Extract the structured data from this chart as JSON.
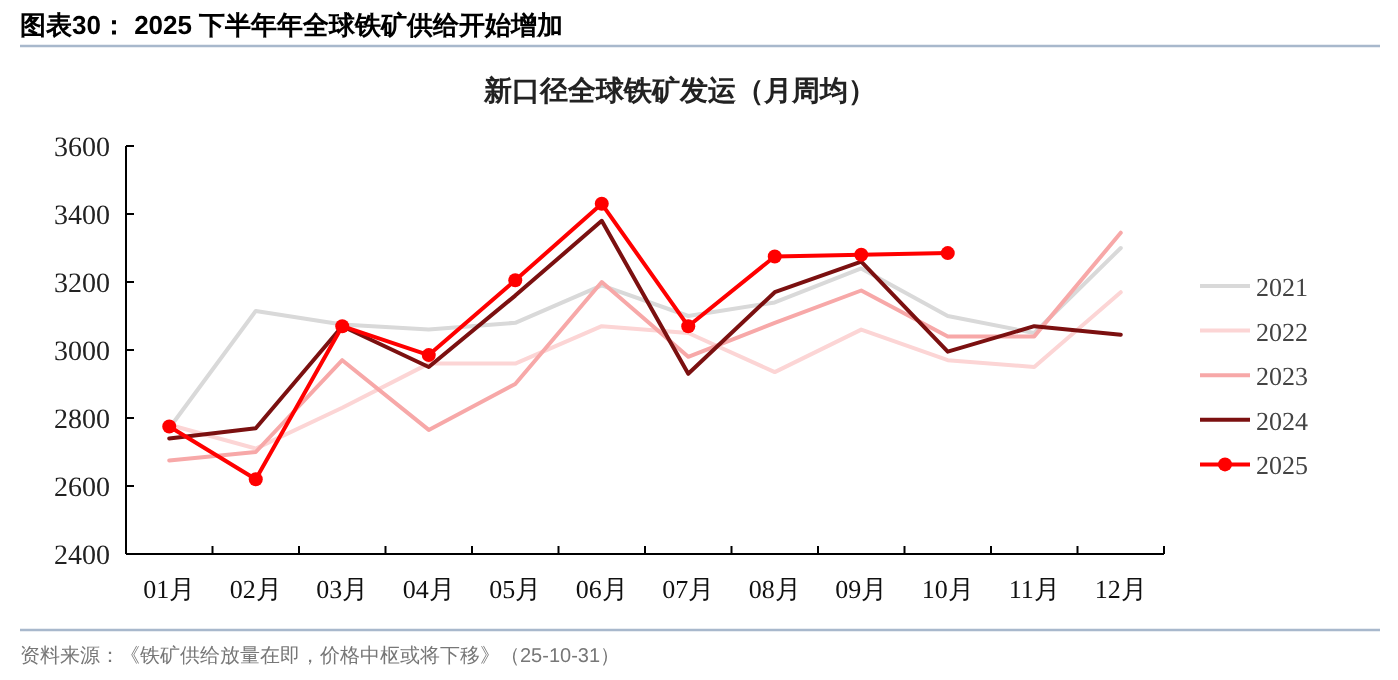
{
  "chart_data": {
    "type": "line",
    "title": "新口径全球铁矿发运（月周均）",
    "subtitle": "图表30： 2025 下半年年全球铁矿供给开始增加",
    "annotations": [
      "资料来源：《铁矿供给放量在即，价格中枢或将下移》（25-10-31）"
    ],
    "categories": [
      "01月",
      "02月",
      "03月",
      "04月",
      "05月",
      "06月",
      "07月",
      "08月",
      "09月",
      "10月",
      "11月",
      "12月"
    ],
    "ylim": [
      2400,
      3600
    ],
    "yticks": [
      2400,
      2600,
      2800,
      3000,
      3200,
      3400,
      3600
    ],
    "grid": false,
    "legend": "right",
    "series": [
      {
        "name": "2021",
        "color": "#d9d9d9",
        "marker": "none",
        "values": [
          2770,
          3115,
          3075,
          3060,
          3080,
          3190,
          3100,
          3140,
          3240,
          3100,
          3050,
          3300
        ]
      },
      {
        "name": "2022",
        "color": "#fcd5d5",
        "marker": "none",
        "values": [
          2780,
          2710,
          2830,
          2960,
          2960,
          3070,
          3050,
          2935,
          3060,
          2970,
          2950,
          3170
        ]
      },
      {
        "name": "2023",
        "color": "#f7a8a8",
        "marker": "none",
        "values": [
          2675,
          2700,
          2970,
          2765,
          2900,
          3200,
          2980,
          3080,
          3175,
          3040,
          3040,
          3345
        ]
      },
      {
        "name": "2024",
        "color": "#7b1010",
        "marker": "none",
        "values": [
          2740,
          2770,
          3070,
          2950,
          3160,
          3380,
          2930,
          3170,
          3260,
          2995,
          3070,
          3045
        ]
      },
      {
        "name": "2025",
        "color": "#ff0000",
        "marker": "circle",
        "values": [
          2775,
          2620,
          3070,
          2985,
          3205,
          3430,
          3070,
          3275,
          3280,
          3285,
          null,
          null
        ]
      }
    ]
  }
}
